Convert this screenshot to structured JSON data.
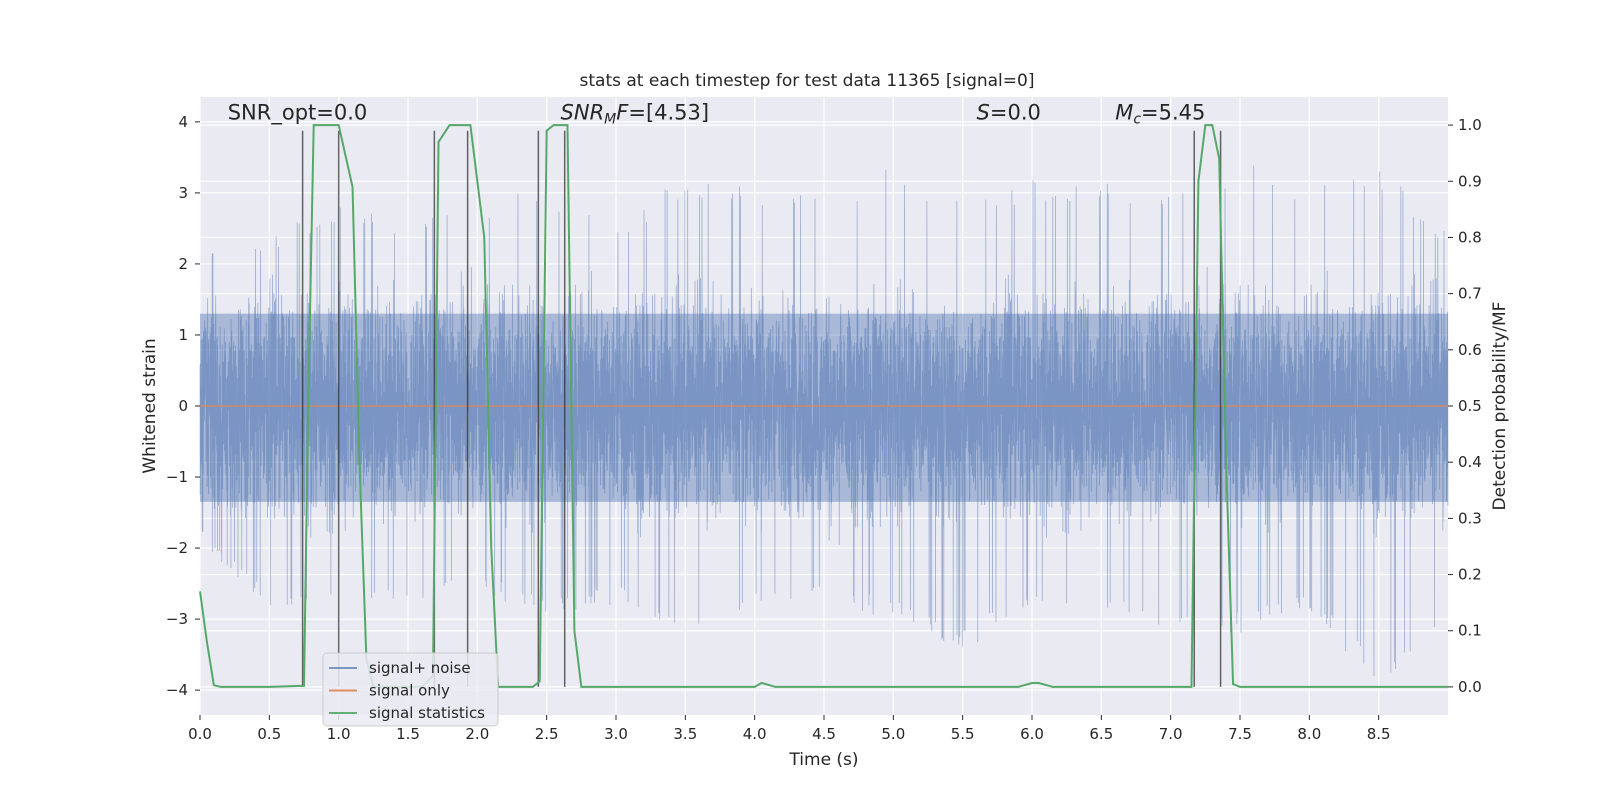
{
  "chart_data": {
    "type": "line",
    "title": "stats at each timestep for test data 11365 [signal=0]",
    "xlabel": "Time (s)",
    "ylabel": "Whitened strain",
    "ylabel_right": "Detection probability/MF",
    "xlim": [
      0,
      9.0
    ],
    "ylim": [
      -4.35,
      4.35
    ],
    "ylim_right": [
      -0.05,
      1.05
    ],
    "x_ticks": [
      0.0,
      0.5,
      1.0,
      1.5,
      2.0,
      2.5,
      3.0,
      3.5,
      4.0,
      4.5,
      5.0,
      5.5,
      6.0,
      6.5,
      7.0,
      7.5,
      8.0,
      8.5
    ],
    "x_tick_labels": [
      "0.0",
      "0.5",
      "1.0",
      "1.5",
      "2.0",
      "2.5",
      "3.0",
      "3.5",
      "4.0",
      "4.5",
      "5.0",
      "5.5",
      "6.0",
      "6.5",
      "7.0",
      "7.5",
      "8.0",
      "8.5"
    ],
    "y_ticks": [
      -4,
      -3,
      -2,
      -1,
      0,
      1,
      2,
      3,
      4
    ],
    "y_tick_labels": [
      "−4",
      "−3",
      "−2",
      "−1",
      "0",
      "1",
      "2",
      "3",
      "4"
    ],
    "y_ticks_right": [
      0.0,
      0.1,
      0.2,
      0.3,
      0.4,
      0.5,
      0.6,
      0.7,
      0.8,
      0.9,
      1.0
    ],
    "y_tick_labels_right": [
      "0.0",
      "0.1",
      "0.2",
      "0.3",
      "0.4",
      "0.5",
      "0.6",
      "0.7",
      "0.8",
      "0.9",
      "1.0"
    ],
    "grid": true,
    "legend_position": "lower-left",
    "annotations": [
      {
        "segments": [
          {
            "text": "SNR_opt=0.0",
            "italic": false
          }
        ],
        "x": 0.2,
        "y_right": 1.01
      },
      {
        "segments": [
          {
            "text": "SNR",
            "italic": true
          },
          {
            "text": "M",
            "italic": true,
            "sub": true
          },
          {
            "text": "F",
            "italic": true
          },
          {
            "text": "=[4.53]",
            "italic": false
          }
        ],
        "x": 2.6,
        "y_right": 1.01
      },
      {
        "segments": [
          {
            "text": "S",
            "italic": true
          },
          {
            "text": "=0.0",
            "italic": false
          }
        ],
        "x": 5.6,
        "y_right": 1.01
      },
      {
        "segments": [
          {
            "text": "M",
            "italic": true
          },
          {
            "text": "c",
            "italic": true,
            "sub": true
          },
          {
            "text": "=5.45",
            "italic": false
          }
        ],
        "x": 6.6,
        "y_right": 1.01
      }
    ],
    "series": [
      {
        "name": "signal+ noise",
        "axis": "left",
        "color": "#4c72b0",
        "opacity": 0.5,
        "style": "dense noise trace",
        "sample_count": 9000,
        "peak_envelope_pos": [
          2.1,
          2.4,
          2.9,
          2.6,
          2.9,
          3.1,
          2.5,
          3.3,
          3.1,
          3.0,
          3.4,
          2.9,
          3.2,
          3.2,
          3.0,
          3.5,
          3.1,
          3.4,
          2.5
        ],
        "peak_envelope_neg": [
          -1.9,
          -2.9,
          -2.7,
          -2.9,
          -2.6,
          -3.0,
          -2.8,
          -3.2,
          -2.9,
          -2.8,
          -3.0,
          -3.5,
          -2.8,
          -2.9,
          -3.3,
          -3.2,
          -2.9,
          -4.0,
          -3.0
        ],
        "inner_band": [
          -1.35,
          1.3
        ]
      },
      {
        "name": "signal only",
        "axis": "left",
        "color": "#dd8452",
        "x": [
          0.0,
          9.0
        ],
        "y": [
          0.0,
          0.0
        ]
      },
      {
        "name": "signal statistics",
        "axis": "right",
        "color": "#55a868",
        "x": [
          0.0,
          0.05,
          0.1,
          0.15,
          0.5,
          0.75,
          0.78,
          0.82,
          0.85,
          1.0,
          1.1,
          1.15,
          1.2,
          1.25,
          1.6,
          1.68,
          1.72,
          1.8,
          1.95,
          2.05,
          2.1,
          2.15,
          2.4,
          2.45,
          2.5,
          2.55,
          2.65,
          2.7,
          2.75,
          4.0,
          4.05,
          4.15,
          5.9,
          6.0,
          6.05,
          6.15,
          7.15,
          7.2,
          7.25,
          7.3,
          7.35,
          7.4,
          7.45,
          7.5,
          9.0
        ],
        "y": [
          0.17,
          0.08,
          0.003,
          0.0,
          0.0,
          0.002,
          0.5,
          1.0,
          1.0,
          1.0,
          0.89,
          0.4,
          0.05,
          0.0,
          0.0,
          0.02,
          0.97,
          1.0,
          1.0,
          0.8,
          0.25,
          0.0,
          0.0,
          0.01,
          0.99,
          1.0,
          1.0,
          0.1,
          0.0,
          0.0,
          0.007,
          0.0,
          0.0,
          0.007,
          0.007,
          0.0,
          0.0,
          0.9,
          1.0,
          1.0,
          0.94,
          0.4,
          0.005,
          0.0,
          0.0
        ]
      }
    ],
    "vertical_markers": {
      "axis": "right",
      "color": "#333333",
      "opacity": 0.75,
      "x": [
        0.74,
        1.0,
        1.69,
        1.93,
        2.44,
        2.63,
        7.17,
        7.36
      ],
      "y_range": [
        0.0,
        0.99
      ]
    }
  }
}
